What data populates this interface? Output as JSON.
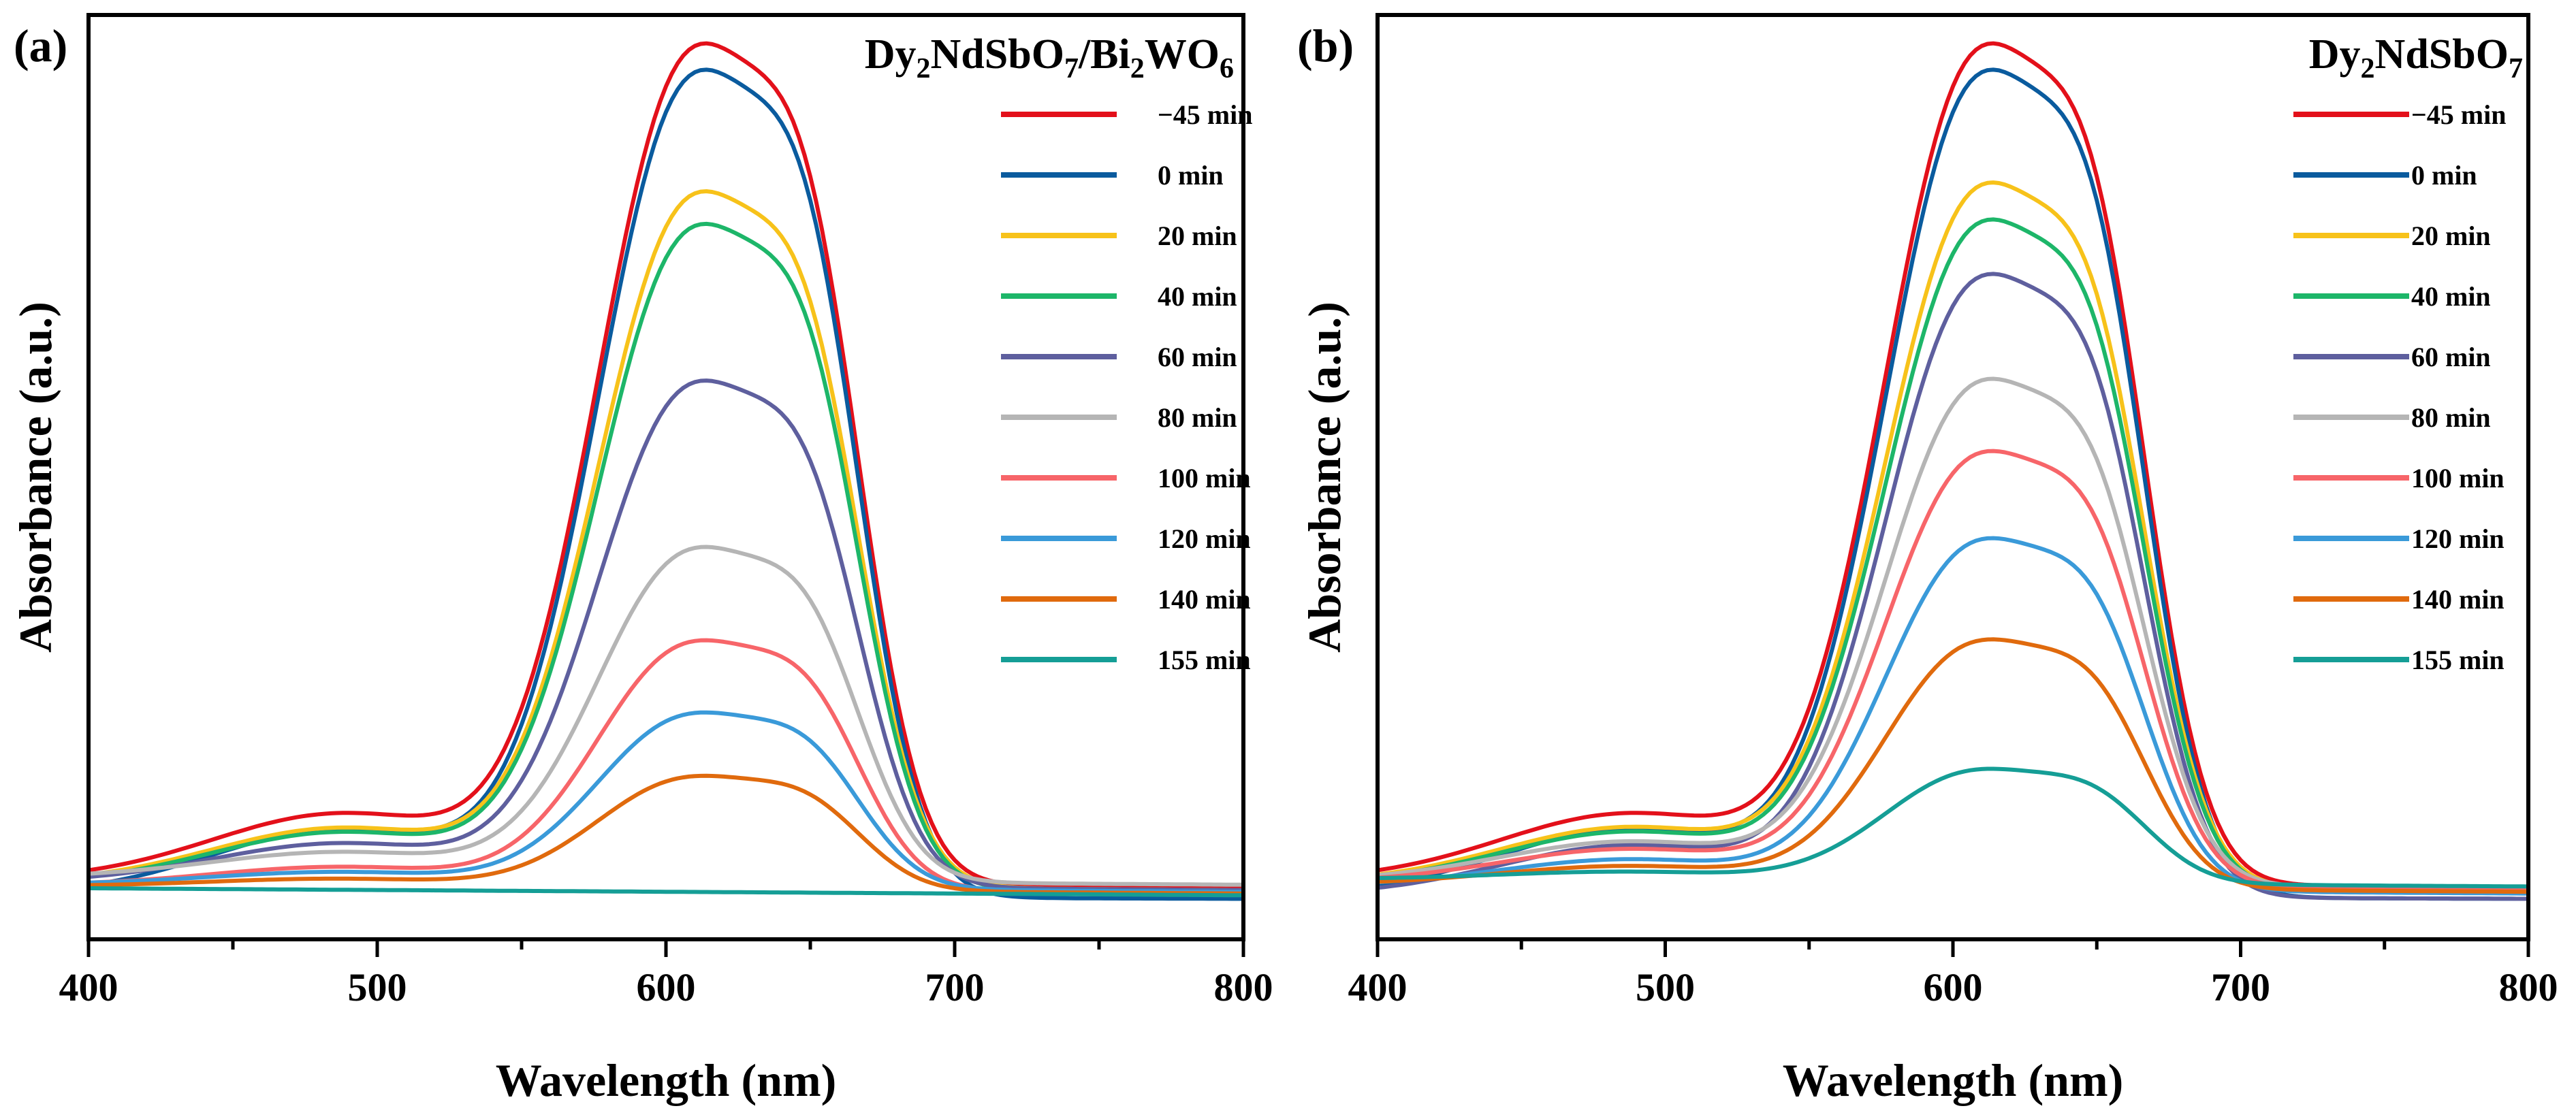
{
  "chart_data": [
    {
      "type": "line",
      "panel_label": "(a)",
      "title": {
        "formula_parts": [
          {
            "t": "Dy"
          },
          {
            "t": "2",
            "sub": true
          },
          {
            "t": "NdSbO"
          },
          {
            "t": "7",
            "sub": true
          },
          {
            "t": "/Bi"
          },
          {
            "t": "2",
            "sub": true
          },
          {
            "t": "WO"
          },
          {
            "t": "6",
            "sub": true
          }
        ]
      },
      "xlabel": "Wavelength (nm)",
      "ylabel": "Absorbance (a.u.)",
      "xlim": [
        400,
        800
      ],
      "ylim": [
        -0.05,
        1.0
      ],
      "xticks": [
        400,
        500,
        600,
        700,
        800
      ],
      "legend_position": "top-right",
      "series": [
        {
          "name": "−45 min",
          "color": "#e3101a",
          "peak": 0.955,
          "base": 0.013
        },
        {
          "name": "0 min",
          "color": "#0a5b9e",
          "peak": 0.94,
          "base": -0.002
        },
        {
          "name": "20 min",
          "color": "#f7c21a",
          "peak": 0.79,
          "base": 0.01
        },
        {
          "name": "40 min",
          "color": "#1db669",
          "peak": 0.755,
          "base": 0.008
        },
        {
          "name": "60 min",
          "color": "#5e5f9e",
          "peak": 0.575,
          "base": 0.01
        },
        {
          "name": "80 min",
          "color": "#b5b5b5",
          "peak": 0.38,
          "base": 0.016
        },
        {
          "name": "100 min",
          "color": "#f76569",
          "peak": 0.283,
          "base": 0.007
        },
        {
          "name": "120 min",
          "color": "#3a9ad9",
          "peak": 0.2,
          "base": 0.008
        },
        {
          "name": "140 min",
          "color": "#e06a0d",
          "peak": 0.13,
          "base": 0.006
        },
        {
          "name": "155 min",
          "color": "#159e96",
          "peak": 0.0,
          "base": 0.004
        }
      ]
    },
    {
      "type": "line",
      "panel_label": "(b)",
      "title": {
        "formula_parts": [
          {
            "t": "Dy"
          },
          {
            "t": "2",
            "sub": true
          },
          {
            "t": "NdSbO"
          },
          {
            "t": "7",
            "sub": true
          }
        ]
      },
      "xlabel": "Wavelength (nm)",
      "ylabel": "Absorbance (a.u.)",
      "xlim": [
        400,
        800
      ],
      "ylim": [
        -0.05,
        1.0
      ],
      "xticks": [
        400,
        500,
        600,
        700,
        800
      ],
      "legend_position": "top-right",
      "series": [
        {
          "name": "−45 min",
          "color": "#e3101a",
          "peak": 0.955,
          "base": 0.013
        },
        {
          "name": "0 min",
          "color": "#0a5b9e",
          "peak": 0.94,
          "base": -0.002
        },
        {
          "name": "20 min",
          "color": "#f7c21a",
          "peak": 0.8,
          "base": 0.01
        },
        {
          "name": "40 min",
          "color": "#1db669",
          "peak": 0.76,
          "base": 0.008
        },
        {
          "name": "60 min",
          "color": "#5e5f9e",
          "peak": 0.708,
          "base": -0.002
        },
        {
          "name": "80 min",
          "color": "#b5b5b5",
          "peak": 0.575,
          "base": 0.012
        },
        {
          "name": "100 min",
          "color": "#f76569",
          "peak": 0.495,
          "base": 0.01
        },
        {
          "name": "120 min",
          "color": "#3a9ad9",
          "peak": 0.4,
          "base": 0.006
        },
        {
          "name": "140 min",
          "color": "#e06a0d",
          "peak": 0.283,
          "base": 0.008
        },
        {
          "name": "155 min",
          "color": "#159e96",
          "peak": 0.13,
          "base": 0.014
        }
      ]
    }
  ]
}
